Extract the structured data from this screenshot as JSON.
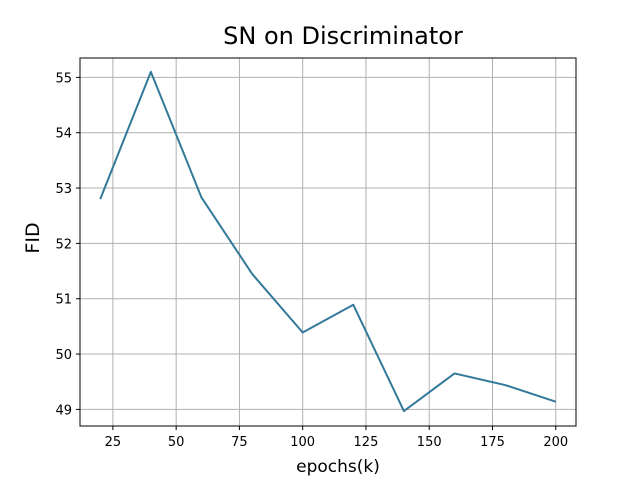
{
  "chart_data": {
    "type": "line",
    "title": "SN on Discriminator",
    "xlabel": "epochs(k)",
    "ylabel": "FID",
    "x": [
      20,
      40,
      60,
      80,
      100,
      120,
      140,
      160,
      180,
      200
    ],
    "series": [
      {
        "values": [
          52.8,
          55.1,
          52.83,
          51.45,
          50.39,
          50.89,
          48.97,
          49.65,
          49.44,
          49.14
        ]
      }
    ],
    "xlim": [
      12,
      208
    ],
    "ylim": [
      48.7,
      55.35
    ],
    "xticks": [
      25,
      50,
      75,
      100,
      125,
      150,
      175,
      200
    ],
    "yticks": [
      49,
      50,
      51,
      52,
      53,
      54,
      55
    ],
    "grid": true,
    "colors": {
      "line": "#33799a",
      "grid": "#b0b0b0",
      "axes": "#000000"
    }
  }
}
